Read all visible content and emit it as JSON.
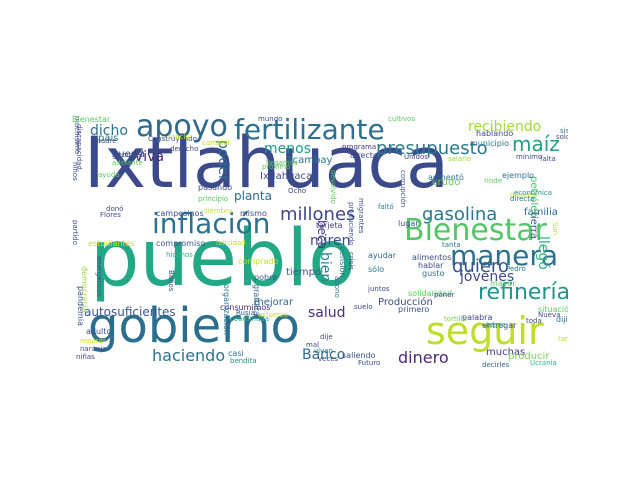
{
  "word_cloud": {
    "colormap": "viridis",
    "background": "#ffffff",
    "words": [
      {
        "text": "Ixtlahuaca",
        "color": "#3b4a8a"
      },
      {
        "text": "pueblo",
        "color": "#22a884"
      },
      {
        "text": "gobierno",
        "color": "#2b6f8e"
      },
      {
        "text": "seguir",
        "color": "#c0dd2e"
      },
      {
        "text": "Bienestar",
        "color": "#54c568"
      },
      {
        "text": "inflación",
        "color": "#2c728e"
      },
      {
        "text": "manera",
        "color": "#2d6f8e"
      },
      {
        "text": "fertilizante",
        "color": "#2d6f8e"
      },
      {
        "text": "apoyo",
        "color": "#31688e"
      },
      {
        "text": "refinería",
        "color": "#1f948c"
      },
      {
        "text": "maíz",
        "color": "#1f9f88"
      },
      {
        "text": "presupuesto",
        "color": "#2a788e"
      },
      {
        "text": "gasolina",
        "color": "#2a788e"
      },
      {
        "text": "millones",
        "color": "#404688"
      },
      {
        "text": "haciendo",
        "color": "#2c728e"
      },
      {
        "text": "quiero",
        "color": "#3b518b"
      },
      {
        "text": "dinero",
        "color": "#482979"
      },
      {
        "text": "jóvenes",
        "color": "#3e4a89"
      },
      {
        "text": "Banco",
        "color": "#31688e"
      },
      {
        "text": "salud",
        "color": "#46307e"
      },
      {
        "text": "dicho",
        "color": "#2d708e"
      },
      {
        "text": "Viva",
        "color": "#472c7a"
      },
      {
        "text": "recibiendo",
        "color": "#a2da37"
      },
      {
        "text": "menos",
        "color": "#1e9b8a"
      },
      {
        "text": "poder",
        "color": "#2f6c8e"
      },
      {
        "text": "miren",
        "color": "#3e4c8a"
      },
      {
        "text": "bien",
        "color": "#25858e"
      },
      {
        "text": "beca",
        "color": "#46337f"
      },
      {
        "text": "llegó",
        "color": "#2fb47c"
      },
      {
        "text": "autosuficientes",
        "color": "#39568c"
      },
      {
        "text": "Ixtlahuaca",
        "color": "#3b4a8a"
      },
      {
        "text": "país",
        "color": "#2a788e"
      },
      {
        "text": "planta",
        "color": "#31688e"
      },
      {
        "text": "guerra",
        "color": "#3b518b"
      },
      {
        "text": "muchas",
        "color": "#46337f"
      },
      {
        "text": "producir",
        "color": "#7ad151"
      },
      {
        "text": "entregar",
        "color": "#3e4c8a"
      },
      {
        "text": "Producción",
        "color": "#3e4a89"
      },
      {
        "text": "familia",
        "color": "#31688e"
      },
      {
        "text": "tierra",
        "color": "#3a538b"
      },
      {
        "text": "petróleo",
        "color": "#4ac16d"
      },
      {
        "text": "crudo",
        "color": "#6ccd5a"
      },
      {
        "text": "Acambay",
        "color": "#2c728e"
      },
      {
        "text": "tarjeta",
        "color": "#433d84"
      },
      {
        "text": "consumimos",
        "color": "#482777"
      },
      {
        "text": "mejorar",
        "color": "#33638d"
      },
      {
        "text": "pobre",
        "color": "#39568c"
      },
      {
        "text": "gratuita",
        "color": "#31688e"
      },
      {
        "text": "organización",
        "color": "#2c728e"
      },
      {
        "text": "campesinos",
        "color": "#3b518b"
      },
      {
        "text": "compromiso",
        "color": "#3b518b"
      },
      {
        "text": "estudiantes",
        "color": "#c8e020"
      },
      {
        "text": "felicidad",
        "color": "#c2df23"
      },
      {
        "text": "democracia",
        "color": "#9dd93b"
      },
      {
        "text": "pandemia",
        "color": "#3b528b"
      },
      {
        "text": "palabra",
        "color": "#404688"
      },
      {
        "text": "situación",
        "color": "#5ec962"
      },
      {
        "text": "adelante",
        "color": "#5ec962"
      },
      {
        "text": "ayudar",
        "color": "#31688e"
      },
      {
        "text": "tiempo",
        "color": "#38598c"
      },
      {
        "text": "casi",
        "color": "#2d708e"
      },
      {
        "text": "decirles",
        "color": "#31688e"
      },
      {
        "text": "saliendo",
        "color": "#3b518b"
      },
      {
        "text": "municipio",
        "color": "#2a788e"
      },
      {
        "text": "hablando",
        "color": "#3e4a89"
      },
      {
        "text": "programa",
        "color": "#46337f"
      },
      {
        "text": "directo",
        "color": "#433e85"
      },
      {
        "text": "Unidos",
        "color": "#433e85"
      },
      {
        "text": "salario",
        "color": "#9dd93b"
      },
      {
        "text": "mínimo",
        "color": "#3e4c8a"
      },
      {
        "text": "ejemplo",
        "color": "#2c728e"
      },
      {
        "text": "económica",
        "color": "#1f978b"
      },
      {
        "text": "aumentó",
        "color": "#2d708e"
      },
      {
        "text": "cuidar",
        "color": "#3b518b"
      },
      {
        "text": "corrupción",
        "color": "#3b518b"
      },
      {
        "text": "migrantes",
        "color": "#3b518b"
      },
      {
        "text": "produciendo",
        "color": "#3b518b"
      },
      {
        "text": "primero",
        "color": "#3b518b"
      },
      {
        "text": "faltó",
        "color": "#2a788e"
      },
      {
        "text": "dijimos",
        "color": "#2a788e"
      },
      {
        "text": "toda",
        "color": "#3e4a89"
      },
      {
        "text": "Nueva",
        "color": "#3e4a89"
      },
      {
        "text": "tortilla",
        "color": "#7ad151"
      },
      {
        "text": "Ucrania",
        "color": "#2fb47c"
      },
      {
        "text": "breve",
        "color": "#2fb47c"
      },
      {
        "text": "veces",
        "color": "#3b518b"
      },
      {
        "text": "Futuro",
        "color": "#3b518b"
      },
      {
        "text": "bendita",
        "color": "#1f978b"
      },
      {
        "text": "niñas",
        "color": "#433e85"
      },
      {
        "text": "naranja",
        "color": "#3e4c8a"
      },
      {
        "text": "reparar",
        "color": "#d2e21b"
      },
      {
        "text": "adulto",
        "color": "#3e4c8a"
      },
      {
        "text": "sólo",
        "color": "#2c728e"
      },
      {
        "text": "abono",
        "color": "#2c728e"
      },
      {
        "text": "pensión",
        "color": "#2a788e"
      },
      {
        "text": "crisis",
        "color": "#3b518b"
      },
      {
        "text": "solidaridad",
        "color": "#5ec962"
      },
      {
        "text": "gusto",
        "color": "#2c728e"
      },
      {
        "text": "poner",
        "color": "#3e4a89"
      },
      {
        "text": "hablar",
        "color": "#3e4a89"
      },
      {
        "text": "juntos",
        "color": "#3e4a89"
      },
      {
        "text": "mayor",
        "color": "#5ec962"
      },
      {
        "text": "alimentos",
        "color": "#3e4a89"
      },
      {
        "text": "tanta",
        "color": "#2a788e"
      },
      {
        "text": "Pedro",
        "color": "#2a788e"
      },
      {
        "text": "comprado",
        "color": "#c2df23"
      },
      {
        "text": "dije",
        "color": "#3e4a89"
      },
      {
        "text": "mal",
        "color": "#3e4a89"
      },
      {
        "text": "vivan",
        "color": "#2c728e"
      },
      {
        "text": "suelo",
        "color": "#3e4c8a"
      },
      {
        "text": "Rusia",
        "color": "#38598c"
      },
      {
        "text": "esfuerzo",
        "color": "#c2df23"
      },
      {
        "text": "coordinada",
        "color": "#2fb47c"
      },
      {
        "text": "hicimos",
        "color": "#2fb47c"
      },
      {
        "text": "Baños",
        "color": "#3e4c8a"
      },
      {
        "text": "partido",
        "color": "#3e4c8a"
      },
      {
        "text": "energéticos",
        "color": "#3e4c8a"
      },
      {
        "text": "siembra",
        "color": "#c2df23"
      },
      {
        "text": "mismo",
        "color": "#3e4c8a"
      },
      {
        "text": "donó",
        "color": "#3e4c8a"
      },
      {
        "text": "Flores",
        "color": "#3e4c8a"
      },
      {
        "text": "pasando",
        "color": "#3e4c8a"
      },
      {
        "text": "principio",
        "color": "#5ec962"
      },
      {
        "text": "próximo",
        "color": "#5ec962"
      },
      {
        "text": "ayuda",
        "color": "#5ec962"
      },
      {
        "text": "niños",
        "color": "#3e4c8a"
      },
      {
        "text": "muchísimo",
        "color": "#3e4c8a"
      },
      {
        "text": "discapacidad",
        "color": "#3e4c8a"
      },
      {
        "text": "siempre",
        "color": "#3e4c8a"
      },
      {
        "text": "madre",
        "color": "#3e4c8a"
      },
      {
        "text": "Construyendo",
        "color": "#3e4c8a"
      },
      {
        "text": "cambiar",
        "color": "#c2df23"
      },
      {
        "text": "derecho",
        "color": "#3e4c8a"
      },
      {
        "text": "precio",
        "color": "#c2df23"
      },
      {
        "text": "mundo",
        "color": "#3e4c8a"
      },
      {
        "text": "cultivos",
        "color": "#5ec962"
      },
      {
        "text": "devolvido",
        "color": "#5ec962"
      },
      {
        "text": "llegamos",
        "color": "#5ec962"
      },
      {
        "text": "Ocho",
        "color": "#3e4c8a"
      },
      {
        "text": "rinde",
        "color": "#5ec962"
      },
      {
        "text": "dólares",
        "color": "#c2df23"
      },
      {
        "text": "directa",
        "color": "#2a788e"
      },
      {
        "text": "sistema",
        "color": "#2a788e"
      },
      {
        "text": "solo",
        "color": "#3e4c8a"
      },
      {
        "text": "tanto",
        "color": "#c2df23"
      },
      {
        "text": "San",
        "color": "#c2df23"
      },
      {
        "text": "falta",
        "color": "#3e4c8a"
      },
      {
        "text": "lugar",
        "color": "#3e4c8a"
      },
      {
        "text": "Bienestar",
        "color": "#5ec962"
      }
    ]
  }
}
